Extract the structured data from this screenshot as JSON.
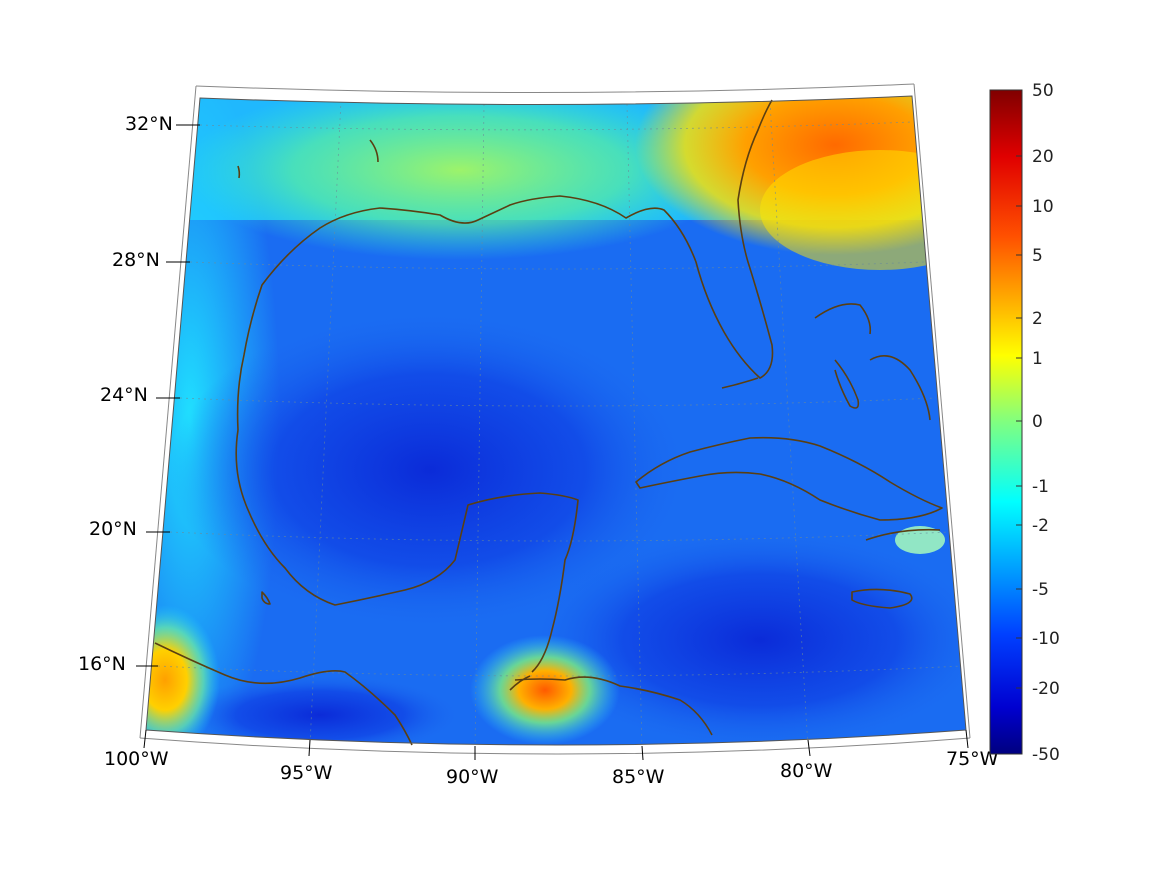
{
  "map": {
    "extent": {
      "lon": [
        -100,
        -75
      ],
      "lat": [
        14,
        33
      ]
    },
    "projection": "conic",
    "grid": "dotted",
    "coastline_color": "#5a3f12",
    "lon_ticks": [
      {
        "label": "100°W",
        "lon": -100
      },
      {
        "label": "95°W",
        "lon": -95
      },
      {
        "label": "90°W",
        "lon": -90
      },
      {
        "label": "85°W",
        "lon": -85
      },
      {
        "label": "80°W",
        "lon": -80
      },
      {
        "label": "75°W",
        "lon": -75
      }
    ],
    "lat_ticks": [
      {
        "label": "32°N",
        "lat": 32
      },
      {
        "label": "28°N",
        "lat": 28
      },
      {
        "label": "24°N",
        "lat": 24
      },
      {
        "label": "20°N",
        "lat": 20
      },
      {
        "label": "16°N",
        "lat": 16
      }
    ]
  },
  "colorbar": {
    "colormap": "jet",
    "ticks": [
      "50",
      "20",
      "10",
      "5",
      "2",
      "1",
      "0",
      "-1",
      "-2",
      "-5",
      "-10",
      "-20",
      "-50"
    ]
  }
}
